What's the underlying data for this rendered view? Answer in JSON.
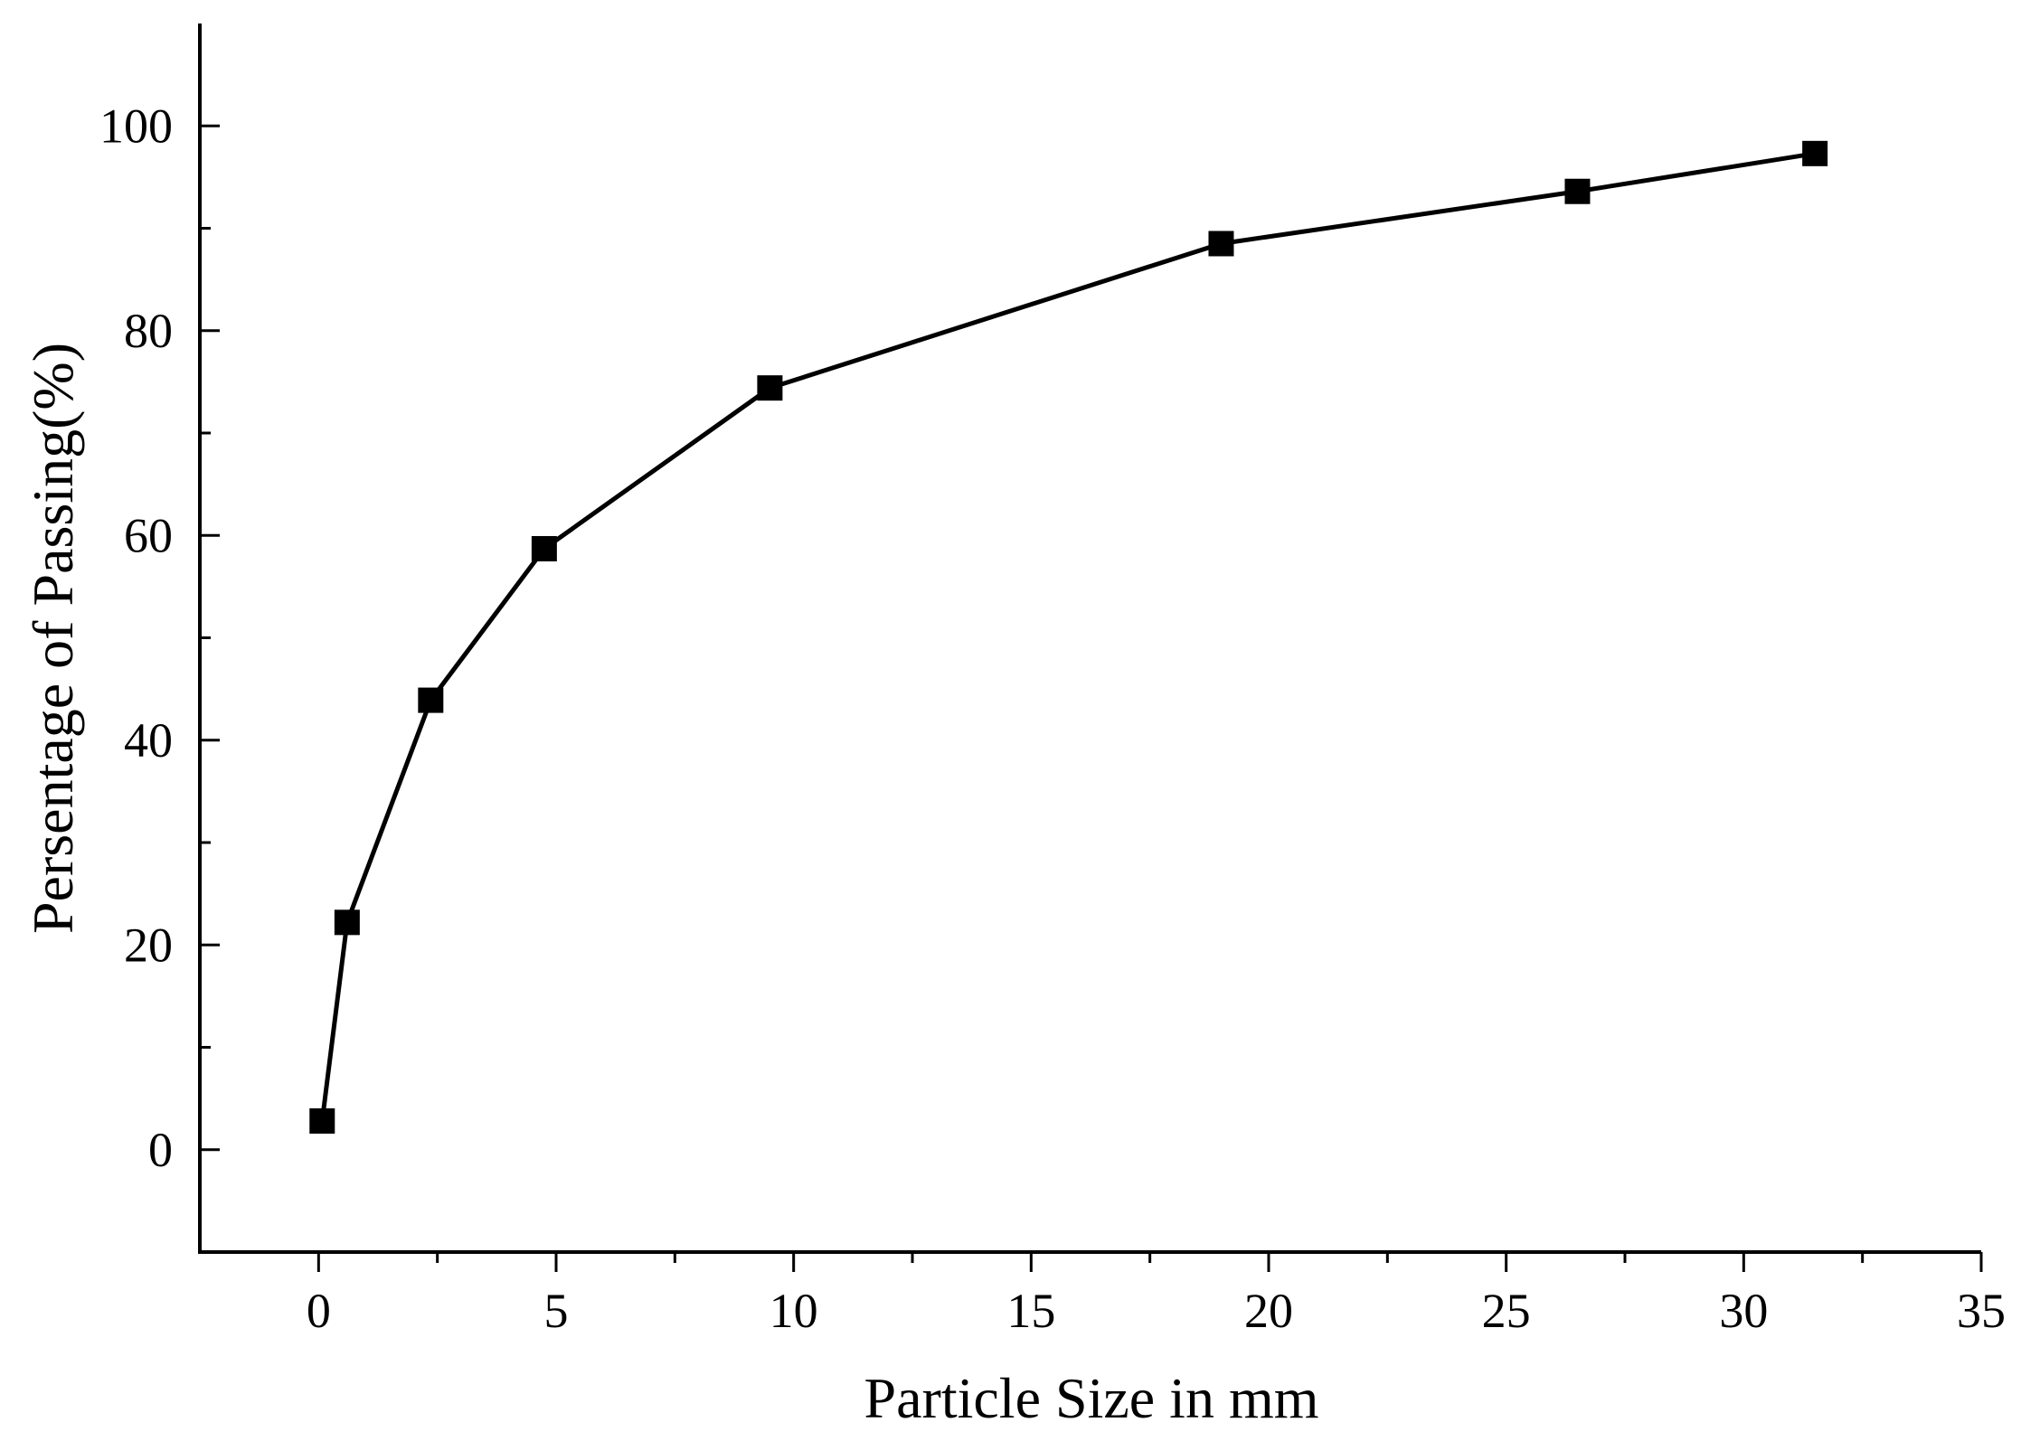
{
  "chart_data": {
    "type": "line",
    "title": "",
    "xlabel": "Particle Size in mm",
    "ylabel": "Persentage of Passing(%)",
    "xlim": [
      -2.5,
      35
    ],
    "ylim": [
      -10,
      110
    ],
    "x_ticks": [
      0,
      5,
      10,
      15,
      20,
      25,
      30,
      35
    ],
    "y_ticks": [
      0,
      20,
      40,
      60,
      80,
      100
    ],
    "grid": false,
    "legend": "none",
    "series": [
      {
        "marker": "square",
        "color": "#000000",
        "x": [
          0.075,
          0.6,
          2.36,
          4.75,
          9.5,
          19,
          26.5,
          31.5
        ],
        "y": [
          2.8,
          22.2,
          43.9,
          58.7,
          74.4,
          88.5,
          93.6,
          97.3
        ]
      }
    ]
  }
}
